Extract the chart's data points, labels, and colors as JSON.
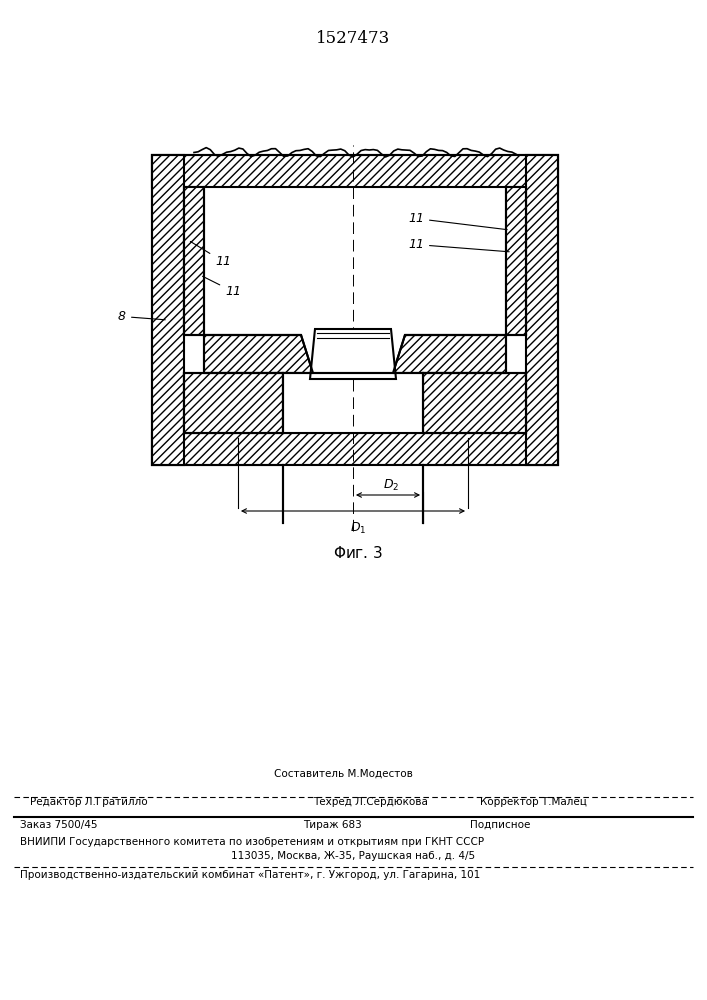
{
  "title": "1527473",
  "background_color": "#ffffff",
  "line_color": "#000000",
  "footer_line1": "Составитель М.Модестов",
  "footer_line2_left": "Редактор Л.Гратилло",
  "footer_line2_mid": "Техред Л.Сердюкова",
  "footer_line2_right": "Корректор Т.Малец",
  "footer_line3_left": "Заказ 7500/45",
  "footer_line3_mid": "Тираж 683",
  "footer_line3_right": "Подписное",
  "footer_line4": "ВНИИПИ Государственного комитета по изобретениям и открытиям при ГКНТ СССР",
  "footer_line5": "113035, Москва, Ж-35, Раушская наб., д. 4/5",
  "footer_line6": "Производственно-издательский комбинат «Патент», г. Ужгород, ул. Гагарина, 101"
}
